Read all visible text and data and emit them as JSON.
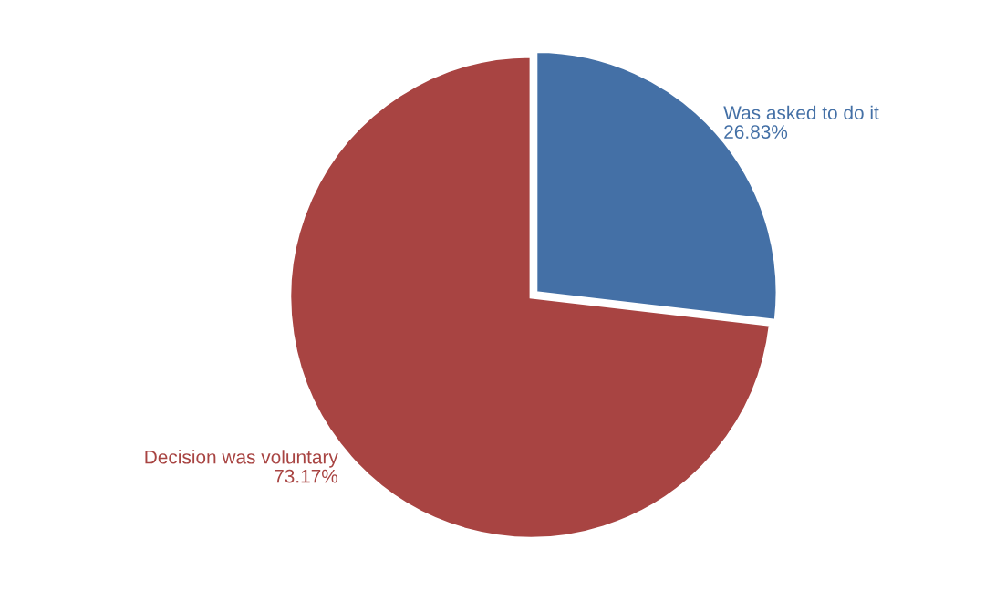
{
  "chart_data": {
    "type": "pie",
    "categories": [
      "Was asked to do it",
      "Decision was voluntary"
    ],
    "values": [
      26.83,
      73.17
    ],
    "colors": [
      "#4470a6",
      "#a84442"
    ],
    "value_labels": [
      "26.83%",
      "73.17%"
    ]
  }
}
